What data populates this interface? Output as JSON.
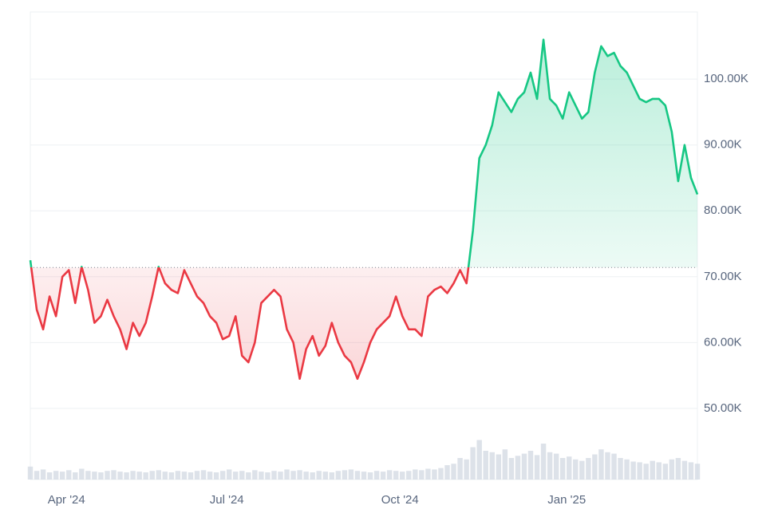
{
  "chart_data": {
    "type": "baseline-line",
    "categories": [
      null,
      null,
      null,
      null,
      null,
      null,
      "Apr '24",
      null,
      null,
      null,
      null,
      null,
      null,
      null,
      null,
      null,
      null,
      null,
      null,
      null,
      null,
      null,
      null,
      null,
      null,
      null,
      null,
      null,
      null,
      null,
      null,
      "Jul '24",
      null,
      null,
      null,
      null,
      null,
      null,
      null,
      null,
      null,
      null,
      null,
      null,
      null,
      null,
      null,
      null,
      null,
      null,
      null,
      null,
      null,
      null,
      null,
      null,
      null,
      null,
      "Oct '24",
      null,
      null,
      null,
      null,
      null,
      null,
      null,
      null,
      null,
      null,
      null,
      null,
      null,
      null,
      null,
      null,
      null,
      null,
      null,
      null,
      null,
      null,
      null,
      null,
      null,
      "Jan '25",
      null,
      null,
      null,
      null,
      null,
      null,
      null,
      null,
      null,
      null,
      null,
      null,
      null,
      null,
      null,
      null,
      null,
      null,
      null,
      null
    ],
    "values": [
      72.5,
      65,
      62,
      67,
      64,
      70,
      71,
      66,
      71.5,
      68,
      63,
      64,
      66.5,
      64,
      62,
      59,
      63,
      61,
      63,
      67,
      71.5,
      69,
      68,
      67.5,
      71,
      69,
      67,
      66,
      64,
      63,
      60.5,
      61,
      64,
      58,
      57,
      60,
      66,
      67,
      68,
      67,
      62,
      60,
      54.5,
      59,
      61,
      58,
      59.5,
      63,
      60,
      58,
      57,
      54.5,
      57,
      60,
      62,
      63,
      64,
      67,
      64,
      62,
      62,
      61,
      67,
      68,
      68.5,
      67.5,
      69,
      71,
      69,
      77,
      88,
      90,
      93,
      98,
      96.5,
      95,
      97,
      98,
      101,
      97,
      106,
      97,
      96,
      94,
      98,
      96,
      94,
      95,
      101,
      105,
      103.5,
      104,
      102,
      101,
      99,
      97,
      96.5,
      97,
      97,
      96,
      92,
      84.5,
      90,
      85,
      82.5
    ],
    "volume": [
      18,
      12,
      14,
      10,
      12,
      11,
      13,
      10,
      15,
      12,
      11,
      10,
      12,
      13,
      11,
      10,
      12,
      11,
      10,
      12,
      13,
      11,
      10,
      12,
      11,
      10,
      12,
      13,
      11,
      10,
      12,
      14,
      11,
      12,
      10,
      13,
      11,
      10,
      12,
      11,
      14,
      12,
      13,
      11,
      10,
      12,
      11,
      10,
      12,
      13,
      14,
      12,
      11,
      10,
      12,
      11,
      13,
      12,
      11,
      12,
      14,
      13,
      15,
      14,
      16,
      20,
      22,
      30,
      28,
      45,
      55,
      40,
      38,
      35,
      42,
      30,
      33,
      36,
      40,
      34,
      50,
      38,
      36,
      30,
      32,
      28,
      26,
      30,
      35,
      42,
      38,
      36,
      30,
      28,
      25,
      24,
      22,
      26,
      24,
      22,
      28,
      30,
      26,
      24,
      22
    ],
    "volume_lim": [
      0,
      100
    ],
    "baseline": 71.4,
    "ylim": [
      39.2,
      110.2
    ],
    "yticks": [
      {
        "value": 50,
        "label": "50.00K"
      },
      {
        "value": 60,
        "label": "60.00K"
      },
      {
        "value": 70,
        "label": "70.00K"
      },
      {
        "value": 80,
        "label": "80.00K"
      },
      {
        "value": 90,
        "label": "90.00K"
      },
      {
        "value": 100,
        "label": "100.00K"
      }
    ],
    "grid": true,
    "up_color": "#16c784",
    "down_color": "#ea3943",
    "volume_color": "#cfd6e0"
  }
}
